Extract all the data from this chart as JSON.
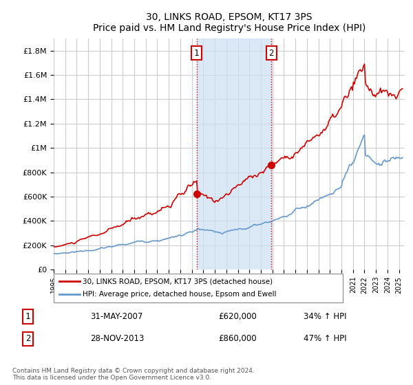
{
  "title": "30, LINKS ROAD, EPSOM, KT17 3PS",
  "subtitle": "Price paid vs. HM Land Registry's House Price Index (HPI)",
  "ylabel_ticks": [
    "£0",
    "£200K",
    "£400K",
    "£600K",
    "£800K",
    "£1M",
    "£1.2M",
    "£1.4M",
    "£1.6M",
    "£1.8M"
  ],
  "ylabel_values": [
    0,
    200000,
    400000,
    600000,
    800000,
    1000000,
    1200000,
    1400000,
    1600000,
    1800000
  ],
  "ylim": [
    0,
    1900000
  ],
  "purchase1": {
    "date": "2007-05-31",
    "price": 620000,
    "label": "1",
    "pct": "34%",
    "x": 2007.42
  },
  "purchase2": {
    "date": "2013-11-28",
    "price": 860000,
    "label": "2",
    "pct": "47%",
    "x": 2013.91
  },
  "shaded_region": [
    2007.42,
    2013.91
  ],
  "line1_color": "#cc0000",
  "line2_color": "#6699cc",
  "background_color": "#ffffff",
  "grid_color": "#cccccc",
  "legend1": "30, LINKS ROAD, EPSOM, KT17 3PS (detached house)",
  "legend2": "HPI: Average price, detached house, Epsom and Ewell",
  "table_row1": [
    "1",
    "31-MAY-2007",
    "£620,000",
    "34% ↑ HPI"
  ],
  "table_row2": [
    "2",
    "28-NOV-2013",
    "£860,000",
    "47% ↑ HPI"
  ],
  "footnote": "Contains HM Land Registry data © Crown copyright and database right 2024.\nThis data is licensed under the Open Government Licence v3.0.",
  "xmin": 1995.0,
  "xmax": 2025.5
}
